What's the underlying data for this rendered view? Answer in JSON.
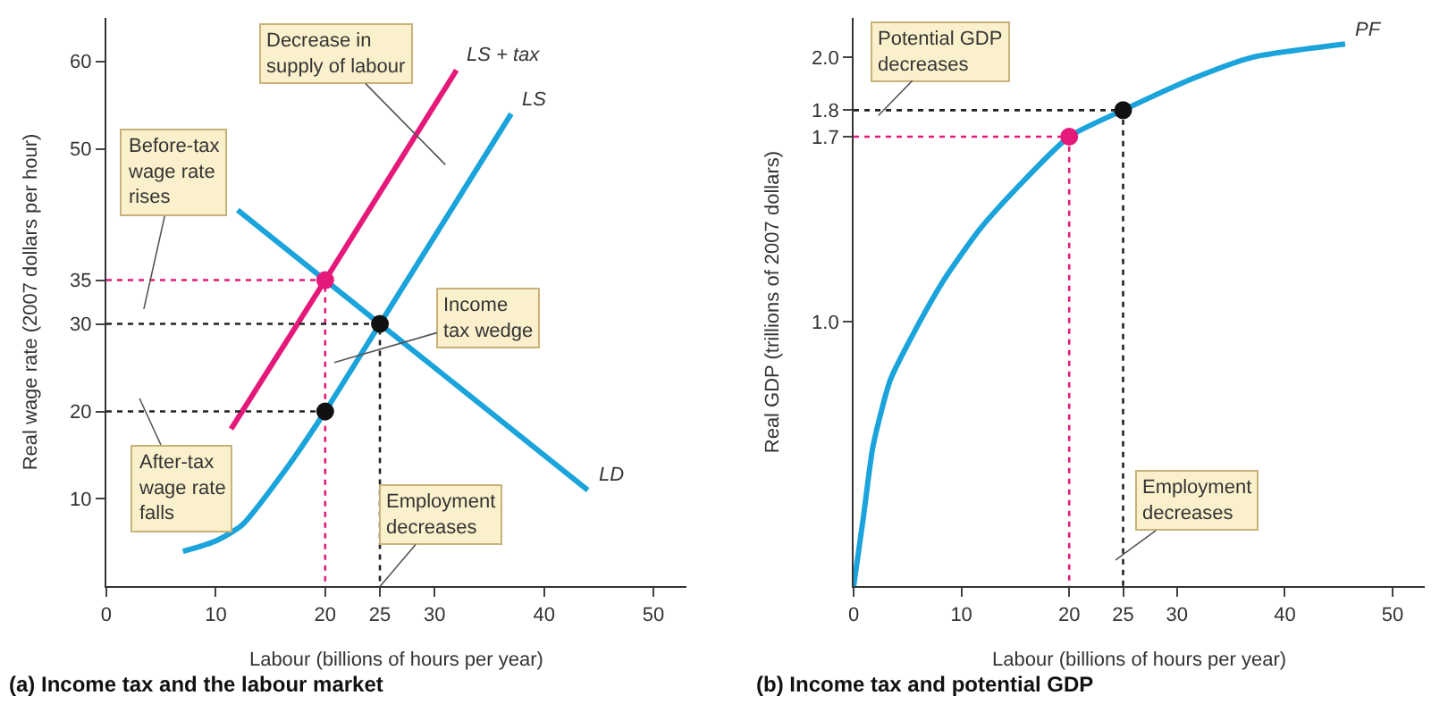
{
  "chart_data": [
    {
      "type": "line",
      "title": "(a) Income tax and the labour market",
      "xlabel": "Labour (billions of hours per year)",
      "ylabel": "Real wage rate (2007 dollars per hour)",
      "xlim": [
        0,
        53
      ],
      "xticks": [
        0,
        10,
        20,
        25,
        30,
        40,
        50
      ],
      "ylim": [
        0,
        65
      ],
      "yticks": [
        10,
        20,
        30,
        35,
        50,
        60
      ],
      "legend": false,
      "series": [
        {
          "name": "LS",
          "color": "#1ba3dc",
          "x": [
            7,
            10,
            12.4,
            16.3,
            20,
            25,
            30,
            37
          ],
          "values": [
            4,
            5.2,
            7,
            13.2,
            20,
            30,
            40,
            54
          ]
        },
        {
          "name": "LS + tax",
          "color": "#e4197a",
          "x": [
            11.4,
            20,
            32
          ],
          "values": [
            18,
            35,
            59
          ]
        },
        {
          "name": "LD",
          "color": "#1ba3dc",
          "x": [
            12,
            20,
            25,
            44
          ],
          "values": [
            43,
            35,
            30,
            11
          ]
        },
        {
          "line_style": "dotted",
          "color": "#e4197a",
          "x": [
            0,
            20,
            20
          ],
          "values": [
            35,
            35,
            0
          ]
        },
        {
          "line_style": "dotted",
          "color": "#222222",
          "x": [
            0,
            25,
            25
          ],
          "values": [
            30,
            30,
            0
          ]
        },
        {
          "line_style": "dotted",
          "color": "#222222",
          "x": [
            0,
            20
          ],
          "values": [
            20,
            20
          ]
        },
        {
          "type": "scatter",
          "color": "#111111",
          "x": [
            25,
            20
          ],
          "values": [
            30,
            20
          ]
        },
        {
          "type": "scatter",
          "color": "#e4197a",
          "x": [
            20
          ],
          "values": [
            35
          ]
        }
      ],
      "annotations": [
        "Decrease in\nsupply of labour",
        "Before-tax\nwage rate\nrises",
        "After-tax\nwage rate\nfalls",
        "Income\ntax wedge",
        {
          "text": "Employment\ndecreases",
          "x": 25,
          "y": 0
        }
      ]
    },
    {
      "type": "line",
      "title": "(b) Income tax and potential GDP",
      "xlabel": "Labour (billions of hours per year)",
      "ylabel": "Real GDP (trillions of 2007 dollars)",
      "xlim": [
        0,
        53
      ],
      "xticks": [
        0,
        10,
        20,
        25,
        30,
        40,
        50
      ],
      "ylim": [
        0,
        2.15
      ],
      "yticks": [
        {
          "value": 1,
          "label": "1.0"
        },
        1.7,
        1.8,
        {
          "value": 2,
          "label": "2.0"
        }
      ],
      "legend": false,
      "series": [
        {
          "name": "PF",
          "color": "#1ba3dc",
          "x": [
            0,
            0.9,
            1.8,
            3.4,
            5.6,
            8.4,
            11.7,
            15,
            20,
            25,
            31.5,
            37,
            45.6
          ],
          "values": [
            0,
            0.26,
            0.53,
            0.78,
            0.96,
            1.16,
            1.35,
            1.5,
            1.7,
            1.8,
            1.92,
            2,
            2.05
          ]
        },
        {
          "line_style": "dotted",
          "color": "#e4197a",
          "x": [
            0,
            20,
            20
          ],
          "values": [
            1.7,
            1.7,
            0
          ]
        },
        {
          "line_style": "dotted",
          "color": "#222222",
          "x": [
            0,
            25,
            25
          ],
          "values": [
            1.8,
            1.8,
            0
          ]
        },
        {
          "type": "scatter",
          "color": "#111111",
          "x": [
            25
          ],
          "values": [
            1.8
          ]
        },
        {
          "type": "scatter",
          "color": "#e4197a",
          "x": [
            20
          ],
          "values": [
            1.7
          ]
        }
      ],
      "annotations": [
        {
          "text": "Potential GDP\ndecreases",
          "x": 2.3,
          "y": 1.78
        },
        {
          "text": "Employment\ndecreases",
          "x": 24.3,
          "y": 0.1
        }
      ]
    }
  ]
}
